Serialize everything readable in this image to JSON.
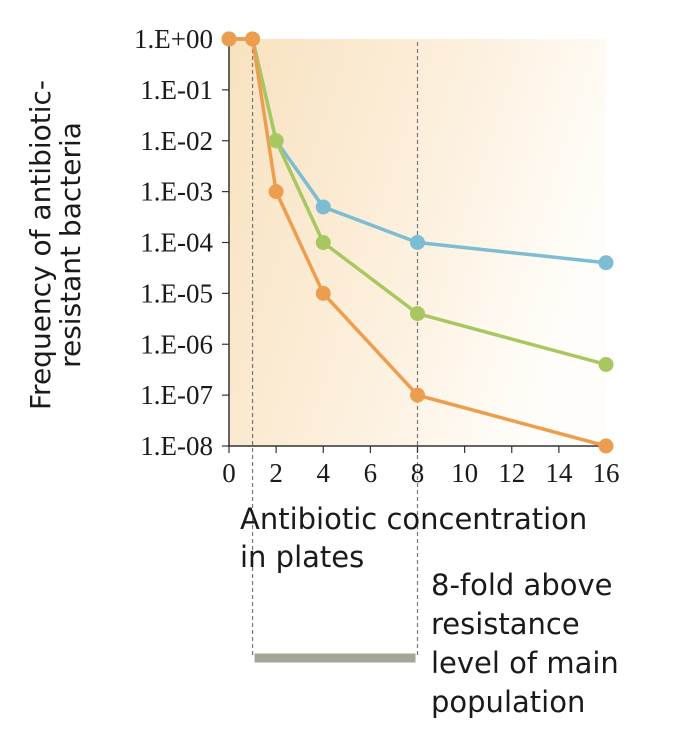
{
  "chart_data": {
    "type": "line",
    "title": "",
    "xlabel": "Antibiotic concentration in plates",
    "xlabel_lines": [
      "Antibiotic concentration",
      "in plates"
    ],
    "ylabel_lines": [
      "Frequency of antibiotic-",
      "resistant bacteria"
    ],
    "x_ticks": [
      0,
      2,
      4,
      6,
      8,
      10,
      12,
      14,
      16
    ],
    "y_ticks": [
      "1.E+00",
      "1.E-01",
      "1.E-02",
      "1.E-03",
      "1.E-04",
      "1.E-05",
      "1.E-06",
      "1.E-07",
      "1.E-08"
    ],
    "xlim": [
      0,
      16
    ],
    "ylim": [
      1e-08,
      1
    ],
    "y_scale": "log",
    "grid": false,
    "background": "gradient, light orange fading to white",
    "series": [
      {
        "color": "#7dbcd2",
        "points": [
          [
            0,
            1
          ],
          [
            1,
            1
          ],
          [
            2,
            0.01
          ],
          [
            4,
            0.0005
          ],
          [
            8,
            0.0001
          ],
          [
            16,
            4e-05
          ]
        ]
      },
      {
        "color": "#a8c760",
        "points": [
          [
            0,
            1
          ],
          [
            1,
            1
          ],
          [
            2,
            0.01
          ],
          [
            4,
            0.0001
          ],
          [
            8,
            4e-06
          ],
          [
            16,
            4e-07
          ]
        ]
      },
      {
        "color": "#ec9e4e",
        "points": [
          [
            0,
            1
          ],
          [
            1,
            1
          ],
          [
            2,
            0.001
          ],
          [
            4,
            1e-05
          ],
          [
            8,
            1e-07
          ],
          [
            16,
            1e-08
          ]
        ]
      }
    ],
    "reference_lines_x": [
      1,
      8
    ],
    "annotation": {
      "lines": [
        "8-fold above",
        "resistance",
        "level of main",
        "population"
      ],
      "range": [
        1,
        8
      ],
      "bar_color": "#a5a595"
    }
  }
}
